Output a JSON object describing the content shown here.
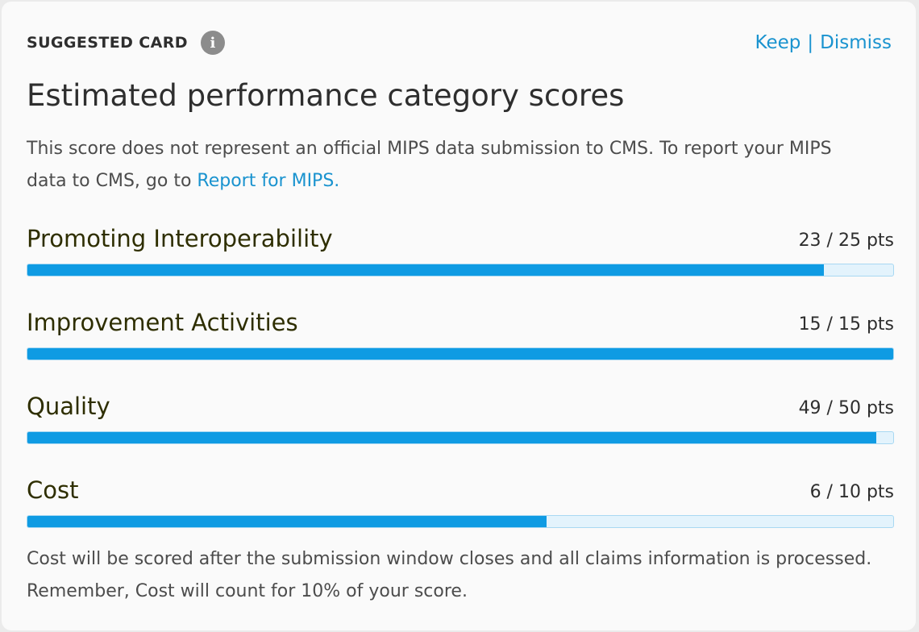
{
  "card": {
    "label": "SUGGESTED CARD",
    "info_icon": "info-circle-icon",
    "actions": {
      "keep": "Keep",
      "separator": "|",
      "dismiss": "Dismiss"
    },
    "title": "Estimated performance category scores",
    "description": "This score does not represent an official MIPS data submission to CMS. To report your MIPS data to CMS, go to ",
    "description_link": "Report for MIPS.",
    "metrics": [
      {
        "name": "Promoting Interoperability",
        "score_text": "23 / 25 pts",
        "score": 23,
        "max": 25
      },
      {
        "name": "Improvement Activities",
        "score_text": "15 / 15 pts",
        "score": 15,
        "max": 15
      },
      {
        "name": "Quality",
        "score_text": "49 / 50 pts",
        "score": 49,
        "max": 50
      },
      {
        "name": "Cost",
        "score_text": "6 / 10 pts",
        "score": 6,
        "max": 10
      }
    ],
    "footnote": "Cost will be scored after the submission window closes and all claims information is processed. Remember, Cost will count for 10% of your score."
  },
  "colors": {
    "accent": "#1a93cf",
    "bar_fill": "#0f9be3",
    "bar_track": "#e3f3fc",
    "heading_text": "#2e2e00"
  }
}
